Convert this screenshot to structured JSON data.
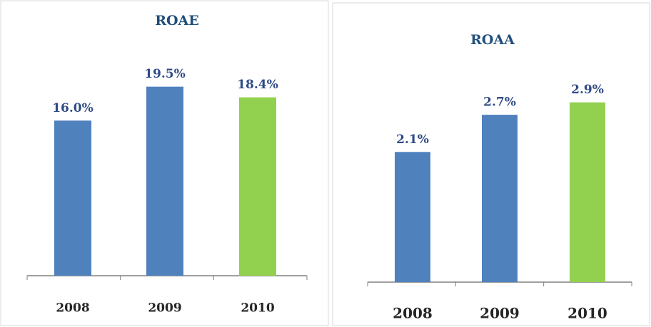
{
  "chart_data": [
    {
      "type": "bar",
      "title": "ROAE",
      "categories": [
        "2008",
        "2009",
        "2010"
      ],
      "values": [
        16.0,
        19.5,
        18.4
      ],
      "value_labels": [
        "16.0%",
        "19.5%",
        "18.4%"
      ],
      "colors": [
        "#4f81bd",
        "#4f81bd",
        "#92d050"
      ],
      "ylim": [
        0,
        28
      ]
    },
    {
      "type": "bar",
      "title": "ROAA",
      "categories": [
        "2008",
        "2009",
        "2010"
      ],
      "values": [
        2.1,
        2.7,
        2.9
      ],
      "value_labels": [
        "2.1%",
        "2.7%",
        "2.9%"
      ],
      "colors": [
        "#4f81bd",
        "#4f81bd",
        "#92d050"
      ],
      "ylim": [
        0,
        4
      ]
    }
  ]
}
